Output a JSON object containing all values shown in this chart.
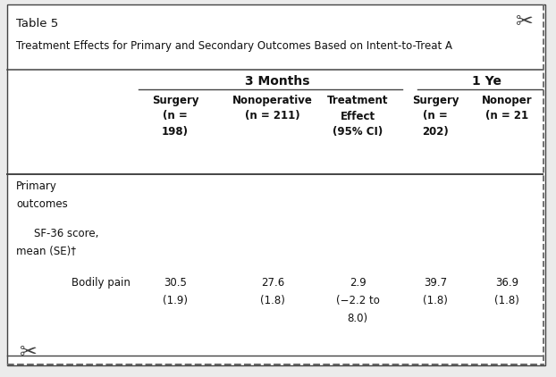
{
  "table_number": "Table 5",
  "title": "Treatment Effects for Primary and Secondary Outcomes Based on Intent-to-Treat A",
  "col_group_3mo": "3 Months",
  "col_group_1yr": "1 Ye",
  "col_headers_3mo": [
    "Surgery\n(n =\n198)",
    "Nonoperative\n(n = 211)",
    "Treatment\nEffect\n(95% CI)"
  ],
  "col_headers_1yr": [
    "Surgery\n(n =\n202)",
    "Nonoper\n(n = 21"
  ],
  "section_label1": "Primary",
  "section_label2": "outcomes",
  "subsection_label": "SF-36 score,",
  "subsection_label2": "mean (SE)†",
  "row_label": "Bodily pain",
  "row_val1": "30.5",
  "row_val1b": "(1.9)",
  "row_val2": "27.6",
  "row_val2b": "(1.8)",
  "row_val3": "2.9",
  "row_val3b": "(−2.2 to",
  "row_val3c": "8.0)",
  "row_val4": "39.7",
  "row_val4b": "(1.8)",
  "row_val5": "36.9",
  "row_val5b": "(1.8)",
  "bg_color": "#ebebeb",
  "white_color": "#ffffff",
  "text_color": "#111111",
  "border_color": "#444444",
  "dashed_color": "#666666",
  "fig_width": 6.22,
  "fig_height": 4.22,
  "dpi": 100
}
